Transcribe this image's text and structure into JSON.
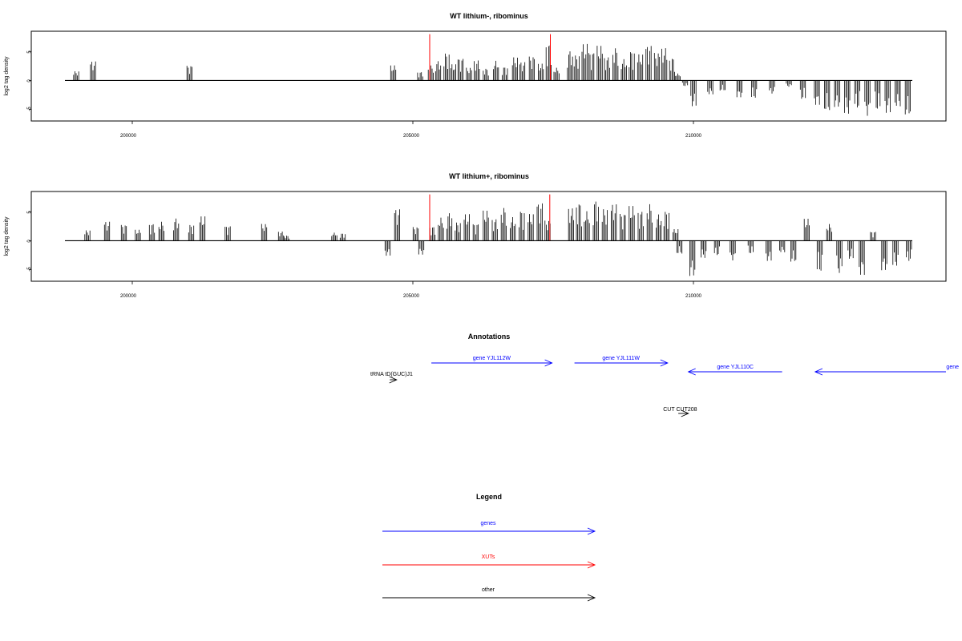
{
  "colors": {
    "genes": "#0000ff",
    "XUTs": "#ff0000",
    "other": "#000000",
    "bars": "#000000",
    "frame": "#000000"
  },
  "chart_data": [
    {
      "type": "bar",
      "title": "WT lithium-, ribominus",
      "ylabel": "log2 tag density",
      "xlim": [
        198200,
        214500
      ],
      "ylim": [
        -7,
        8.5
      ],
      "xticks": [
        {
          "value": 200000,
          "label": "200000"
        },
        {
          "value": 205000,
          "label": "205000"
        },
        {
          "value": 210000,
          "label": "210000"
        }
      ],
      "yticks": [
        {
          "value": -5,
          "label": "-5"
        },
        {
          "value": 0,
          "label": "0"
        },
        {
          "value": 5,
          "label": "5"
        }
      ],
      "baseline": [
        198800,
        213900
      ],
      "highlights": [
        {
          "x": 205300,
          "value": 8.0,
          "color": "#ff0000"
        },
        {
          "x": 207450,
          "value": 8.0,
          "color": "#ff0000"
        }
      ],
      "points": [
        [
          199000,
          1.6
        ],
        [
          199300,
          3.3
        ],
        [
          201020,
          2.6
        ],
        [
          204650,
          2.6
        ],
        [
          205130,
          1.5
        ],
        [
          205320,
          2.6
        ],
        [
          205450,
          3.4
        ],
        [
          205600,
          4.8
        ],
        [
          205720,
          2.8
        ],
        [
          205850,
          3.9
        ],
        [
          206000,
          2.2
        ],
        [
          206140,
          3.5
        ],
        [
          206300,
          2.1
        ],
        [
          206480,
          3.4
        ],
        [
          206640,
          2.4
        ],
        [
          206820,
          4.0
        ],
        [
          206950,
          3.2
        ],
        [
          207120,
          4.2
        ],
        [
          207280,
          2.9
        ],
        [
          207420,
          6.5
        ],
        [
          207560,
          2.2
        ],
        [
          207800,
          5.2
        ],
        [
          207920,
          4.4
        ],
        [
          208060,
          6.3
        ],
        [
          208180,
          5.0
        ],
        [
          208330,
          6.0
        ],
        [
          208460,
          4.1
        ],
        [
          208610,
          5.7
        ],
        [
          208760,
          3.7
        ],
        [
          208900,
          5.2
        ],
        [
          209050,
          4.5
        ],
        [
          209200,
          6.1
        ],
        [
          209350,
          4.8
        ],
        [
          209480,
          5.6
        ],
        [
          209620,
          4.0
        ],
        [
          209720,
          1.2
        ],
        [
          209850,
          -1.0
        ],
        [
          210000,
          -4.5
        ],
        [
          210300,
          -2.4
        ],
        [
          210520,
          -1.8
        ],
        [
          210820,
          -2.9
        ],
        [
          211080,
          -3.1
        ],
        [
          211400,
          -2.3
        ],
        [
          211700,
          -1.1
        ],
        [
          211950,
          -3.3
        ],
        [
          212200,
          -4.2
        ],
        [
          212380,
          -5.3
        ],
        [
          212560,
          -4.6
        ],
        [
          212740,
          -5.8
        ],
        [
          212920,
          -4.9
        ],
        [
          213100,
          -6.1
        ],
        [
          213280,
          -5.2
        ],
        [
          213460,
          -5.6
        ],
        [
          213640,
          -4.5
        ],
        [
          213820,
          -6.0
        ]
      ]
    },
    {
      "type": "bar",
      "title": "WT lithium+, ribominus",
      "ylabel": "log2 tag density",
      "xlim": [
        198200,
        214500
      ],
      "ylim": [
        -7,
        8.5
      ],
      "xticks": [
        {
          "value": 200000,
          "label": "200000"
        },
        {
          "value": 205000,
          "label": "205000"
        },
        {
          "value": 210000,
          "label": "210000"
        }
      ],
      "yticks": [
        {
          "value": -5,
          "label": "-5"
        },
        {
          "value": 0,
          "label": "0"
        },
        {
          "value": 5,
          "label": "5"
        }
      ],
      "baseline": [
        198800,
        213900
      ],
      "highlights": [
        {
          "x": 205300,
          "value": 8.0,
          "color": "#ff0000"
        },
        {
          "x": 207440,
          "value": 8.0,
          "color": "#ff0000"
        }
      ],
      "points": [
        [
          199200,
          1.8
        ],
        [
          199550,
          3.3
        ],
        [
          199850,
          2.8
        ],
        [
          200100,
          1.9
        ],
        [
          200350,
          3.0
        ],
        [
          200520,
          3.3
        ],
        [
          200780,
          3.9
        ],
        [
          201050,
          2.8
        ],
        [
          201250,
          4.2
        ],
        [
          201700,
          2.6
        ],
        [
          202350,
          2.9
        ],
        [
          202650,
          1.6
        ],
        [
          202750,
          0.9
        ],
        [
          203600,
          1.4
        ],
        [
          203750,
          1.3
        ],
        [
          204550,
          -2.6
        ],
        [
          204720,
          5.5
        ],
        [
          205050,
          2.4
        ],
        [
          205150,
          -2.4
        ],
        [
          205350,
          2.5
        ],
        [
          205500,
          4.0
        ],
        [
          205650,
          4.9
        ],
        [
          205800,
          3.2
        ],
        [
          205960,
          4.6
        ],
        [
          206120,
          3.0
        ],
        [
          206300,
          5.2
        ],
        [
          206460,
          3.8
        ],
        [
          206620,
          5.8
        ],
        [
          206780,
          4.1
        ],
        [
          206940,
          5.3
        ],
        [
          207100,
          4.6
        ],
        [
          207260,
          6.6
        ],
        [
          207400,
          3.5
        ],
        [
          207820,
          5.6
        ],
        [
          207960,
          6.7
        ],
        [
          208100,
          5.1
        ],
        [
          208260,
          7.1
        ],
        [
          208420,
          5.5
        ],
        [
          208580,
          6.3
        ],
        [
          208740,
          4.8
        ],
        [
          208900,
          6.0
        ],
        [
          209060,
          5.2
        ],
        [
          209220,
          6.4
        ],
        [
          209380,
          4.6
        ],
        [
          209520,
          5.2
        ],
        [
          209680,
          2.0
        ],
        [
          209750,
          -2.3
        ],
        [
          209980,
          -6.1
        ],
        [
          210180,
          -3.0
        ],
        [
          210420,
          -2.6
        ],
        [
          210700,
          -3.4
        ],
        [
          211020,
          -2.3
        ],
        [
          211340,
          -3.5
        ],
        [
          211580,
          -2.0
        ],
        [
          211780,
          -3.7
        ],
        [
          212020,
          3.8
        ],
        [
          212250,
          -5.5
        ],
        [
          212420,
          2.9
        ],
        [
          212600,
          -5.7
        ],
        [
          212800,
          -3.2
        ],
        [
          213000,
          -5.9
        ],
        [
          213200,
          1.6
        ],
        [
          213400,
          -5.1
        ],
        [
          213600,
          -4.4
        ],
        [
          213840,
          -3.6
        ]
      ]
    }
  ],
  "annotations": {
    "title": "Annotations",
    "xlim": [
      198200,
      214500
    ],
    "features": [
      {
        "label": "gene YJL112W",
        "category": "genes",
        "start": 205330,
        "end": 207480
      },
      {
        "label": "gene YJL111W",
        "category": "genes",
        "start": 207880,
        "end": 209540
      },
      {
        "label": "gene YJL110C",
        "category": "genes",
        "start": 211580,
        "end": 209910
      },
      {
        "label": "gene",
        "category": "genes",
        "start": 214500,
        "end": 212170
      },
      {
        "label": "tRNA tD(GUC)J1",
        "category": "other",
        "start": 204590,
        "end": 204710
      },
      {
        "label": "CUT CUT208",
        "category": "other",
        "start": 209730,
        "end": 209910
      }
    ]
  },
  "legend": {
    "title": "Legend",
    "items": [
      {
        "label": "genes",
        "category": "genes"
      },
      {
        "label": "XUTs",
        "category": "XUTs"
      },
      {
        "label": "other",
        "category": "other"
      }
    ]
  }
}
